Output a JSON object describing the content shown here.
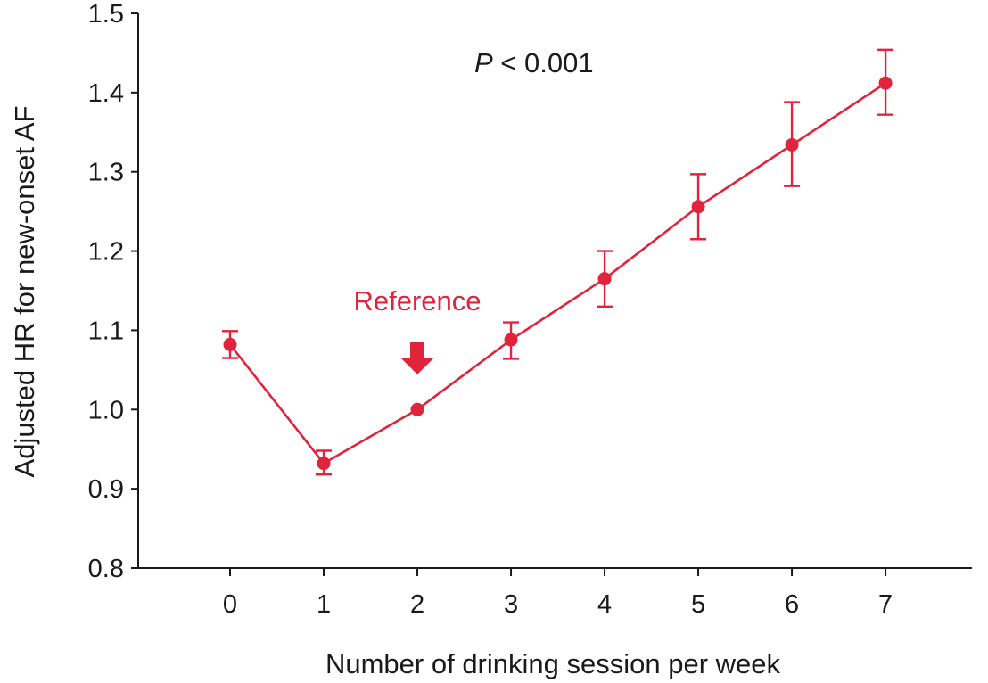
{
  "chart_data": {
    "type": "line",
    "title": "",
    "xlabel": "Number of drinking session per week",
    "ylabel": "Adjusted HR for new-onset AF",
    "x": [
      0,
      1,
      2,
      3,
      4,
      5,
      6,
      7
    ],
    "x_tick_labels": [
      "0",
      "1",
      "2",
      "3",
      "4",
      "5",
      "6",
      "7"
    ],
    "xlim": [
      -1,
      8
    ],
    "ylim": [
      0.8,
      1.5
    ],
    "y_ticks": [
      0.8,
      0.9,
      1.0,
      1.1,
      1.2,
      1.3,
      1.4,
      1.5
    ],
    "y_tick_labels": [
      "0.8",
      "0.9",
      "1.0",
      "1.1",
      "1.2",
      "1.3",
      "1.4",
      "1.5"
    ],
    "grid": false,
    "legend": "none",
    "series": [
      {
        "values": [
          1.082,
          0.932,
          1.0,
          1.088,
          1.165,
          1.256,
          1.334,
          1.412
        ],
        "lower": [
          1.065,
          0.918,
          1.0,
          1.064,
          1.13,
          1.215,
          1.282,
          1.372
        ],
        "upper": [
          1.099,
          0.948,
          1.0,
          1.11,
          1.2,
          1.297,
          1.388,
          1.454
        ],
        "color": "#e0243c"
      }
    ],
    "annotations": {
      "p_value_symbol": "P",
      "p_value_rest": " < 0.001",
      "p_value_color": "#1a1a1a",
      "reference_label": "Reference",
      "reference_x": 2,
      "reference_icon": "down-arrow-icon",
      "reference_color": "#e0243c"
    }
  }
}
